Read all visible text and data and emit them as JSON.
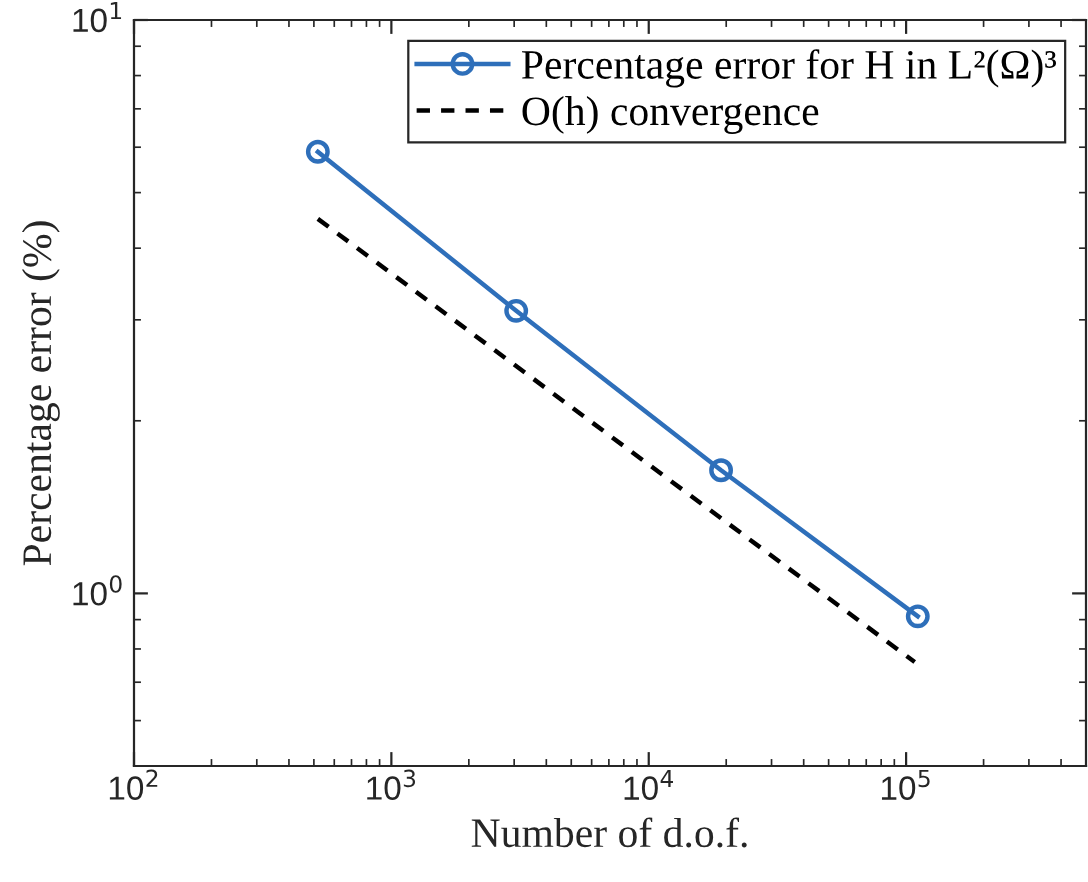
{
  "chart_data": {
    "type": "line",
    "xlabel": "Number of d.o.f.",
    "ylabel": "Percentage error (%)",
    "log": "xy",
    "xlim": [
      100,
      500000
    ],
    "ylim": [
      0.5,
      10
    ],
    "xticks": [
      {
        "value": 100,
        "label": "10$^{2}$"
      },
      {
        "value": 1000,
        "label": "10$^{3}$"
      },
      {
        "value": 10000,
        "label": "10$^{4}$"
      },
      {
        "value": 100000,
        "label": "10$^{5}$"
      }
    ],
    "yticks": [
      {
        "value": 1,
        "label": "10$^{0}$"
      },
      {
        "value": 10,
        "label": "10$^{1}$"
      }
    ],
    "grid": false,
    "legend": "top right",
    "series": [
      {
        "name": "Percentage error for H in L²(Ω)³",
        "color": "#2e6fba",
        "x": [
          518,
          3055,
          19100,
          111000
        ],
        "values": [
          5.89,
          3.11,
          1.64,
          0.912
        ],
        "marker": "circle",
        "line_style": "solid"
      },
      {
        "name": "O(h) convergence",
        "color": "#000000",
        "x": [
          518,
          108000
        ],
        "values": [
          4.5,
          0.759
        ],
        "marker": "none",
        "line_style": "dashed"
      }
    ]
  }
}
